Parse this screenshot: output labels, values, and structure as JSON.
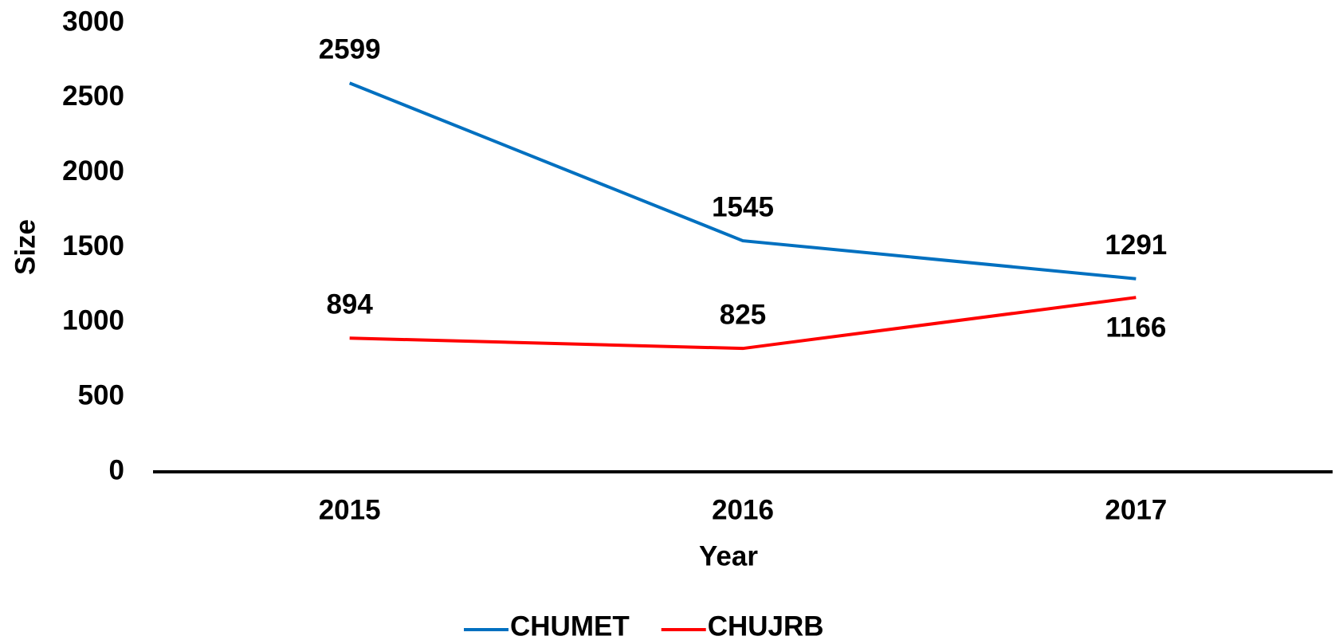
{
  "chart_data": {
    "type": "line",
    "x_label": "Year",
    "y_label": "Size",
    "categories": [
      "2015",
      "2016",
      "2017"
    ],
    "series": [
      {
        "name": "CHUMET",
        "color": "#0070c0",
        "values": [
          2599,
          1545,
          1291
        ]
      },
      {
        "name": "CHUJRB",
        "color": "#ff0000",
        "values": [
          894,
          825,
          1166
        ]
      }
    ],
    "ylim": [
      0,
      3000
    ],
    "yticks": [
      0,
      500,
      1000,
      1500,
      2000,
      2500,
      3000
    ],
    "grid": false,
    "legend": "bottom"
  }
}
